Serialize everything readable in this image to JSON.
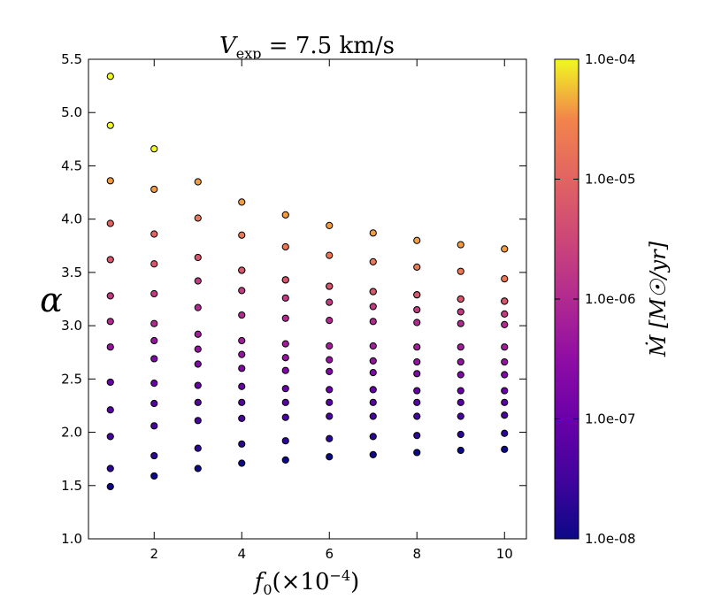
{
  "chart_data": {
    "type": "scatter",
    "title": "V_exp = 7.5 km/s",
    "title_parts": {
      "main": "V",
      "sub": "exp",
      "rest": " = 7.5 km/s"
    },
    "xlabel": "f₀(×10⁻⁴)",
    "xlabel_parts": {
      "main": "f",
      "sub": "0",
      "pre": "(×10",
      "sup": "−4",
      "post": ")"
    },
    "ylabel": "α",
    "xlim": [
      0.5,
      10.5
    ],
    "ylim": [
      1.0,
      5.5
    ],
    "xticks": [
      "2",
      "4",
      "6",
      "8",
      "10"
    ],
    "yticks": [
      "1.0",
      "1.5",
      "2.0",
      "2.5",
      "3.0",
      "3.5",
      "4.0",
      "4.5",
      "5.0",
      "5.5"
    ],
    "grid": false,
    "colorbar": {
      "label": "Ṁ [M☉/yr]",
      "scale": "log",
      "colormap": "plasma",
      "range": [
        "1.0e-08",
        "1.0e-04"
      ],
      "ticks": [
        "1.0e-04",
        "1.0e-05",
        "1.0e-06",
        "1.0e-07",
        "1.0e-08"
      ]
    },
    "mdot_levels": [
      "1e-8",
      "2e-8",
      "4e-8",
      "6e-8",
      "1e-7",
      "2e-7",
      "4e-7",
      "6e-7",
      "1e-6",
      "2e-6",
      "4e-6",
      "6e-6",
      "1e-5",
      "2e-5",
      "4e-5",
      "1e-4"
    ],
    "points_by_level": [
      {
        "mdot": "1e-8",
        "x": [
          1,
          2,
          3,
          4,
          5,
          6,
          7,
          8,
          9,
          10
        ],
        "y": [
          1.49,
          1.59,
          1.66,
          1.71,
          1.74,
          1.77,
          1.79,
          1.81,
          1.83,
          1.84
        ]
      },
      {
        "mdot": "2e-8",
        "x": [
          1,
          2,
          3,
          4,
          5,
          6,
          7,
          8,
          9,
          10
        ],
        "y": [
          1.66,
          1.78,
          1.85,
          1.89,
          1.92,
          1.94,
          1.96,
          1.97,
          1.98,
          1.99
        ]
      },
      {
        "mdot": "4e-8",
        "x": [
          1,
          2,
          3,
          4,
          5,
          6,
          7,
          8,
          9,
          10
        ],
        "y": [
          1.96,
          2.06,
          2.11,
          2.13,
          2.14,
          2.15,
          2.15,
          2.15,
          2.15,
          2.16
        ]
      },
      {
        "mdot": "6e-8",
        "x": [
          1,
          2,
          3,
          4,
          5,
          6,
          7,
          8,
          9,
          10
        ],
        "y": [
          2.21,
          2.27,
          2.28,
          2.28,
          2.28,
          2.28,
          2.28,
          2.28,
          2.28,
          2.28
        ]
      },
      {
        "mdot": "1e-7",
        "x": [
          1,
          2,
          3,
          4,
          5,
          6,
          7,
          8,
          9,
          10
        ],
        "y": [
          2.47,
          2.46,
          2.44,
          2.43,
          2.41,
          2.4,
          2.4,
          2.39,
          2.39,
          2.39
        ]
      },
      {
        "mdot": "2e-7",
        "x": [
          2,
          3,
          4,
          5,
          6,
          7,
          8,
          9,
          10
        ],
        "y": [
          2.69,
          2.64,
          2.6,
          2.58,
          2.57,
          2.56,
          2.55,
          2.54,
          2.54
        ]
      },
      {
        "mdot": "4e-7",
        "x": [
          1,
          2,
          3,
          4,
          5,
          6,
          7,
          8,
          9,
          10
        ],
        "y": [
          2.8,
          2.86,
          2.78,
          2.73,
          2.7,
          2.68,
          2.67,
          2.66,
          2.66,
          2.66
        ]
      },
      {
        "mdot": "6e-7",
        "x": [
          3,
          4,
          5,
          6,
          7,
          8,
          9,
          10
        ],
        "y": [
          2.92,
          2.86,
          2.83,
          2.81,
          2.81,
          2.8,
          2.8,
          2.8
        ]
      },
      {
        "mdot": "1e-6",
        "x": [
          1,
          2,
          3,
          4,
          5,
          6,
          7,
          8,
          9,
          10
        ],
        "y": [
          3.04,
          3.02,
          3.17,
          3.1,
          3.07,
          3.05,
          3.04,
          3.03,
          3.02,
          3.01
        ]
      },
      {
        "mdot": "2e-6",
        "x": [
          1,
          2,
          3,
          4,
          5,
          6,
          7,
          8,
          9,
          10
        ],
        "y": [
          3.28,
          3.3,
          3.42,
          3.33,
          3.26,
          3.22,
          3.18,
          3.15,
          3.13,
          3.11
        ]
      },
      {
        "mdot": "4e-6",
        "x": [
          4,
          5,
          6,
          7,
          8,
          9,
          10
        ],
        "y": [
          3.52,
          3.43,
          3.37,
          3.32,
          3.29,
          3.25,
          3.23
        ]
      },
      {
        "mdot": "6e-6",
        "x": [
          1,
          2,
          3,
          4,
          5,
          6,
          7,
          8,
          9,
          10
        ],
        "y": [
          3.62,
          3.58,
          3.64,
          3.52,
          3.43,
          3.37,
          3.32,
          3.29,
          3.25,
          3.23
        ]
      },
      {
        "mdot": "1e-5",
        "x": [
          1,
          2
        ],
        "y": [
          3.96,
          3.86
        ]
      },
      {
        "mdot": "2e-5",
        "x": [
          3,
          4,
          5,
          6,
          7,
          8,
          9,
          10
        ],
        "y": [
          4.01,
          3.85,
          3.74,
          3.66,
          3.6,
          3.55,
          3.51,
          3.44
        ]
      },
      {
        "mdot": "4e-5",
        "x": [
          1,
          2,
          3,
          4,
          5,
          6,
          7,
          8,
          9,
          10
        ],
        "y": [
          4.36,
          4.28,
          4.35,
          4.16,
          4.04,
          3.94,
          3.87,
          3.8,
          3.76,
          3.72
        ]
      },
      {
        "mdot": "1e-4",
        "x": [
          1,
          1,
          2
        ],
        "y": [
          5.34,
          4.88,
          4.66
        ]
      }
    ]
  }
}
